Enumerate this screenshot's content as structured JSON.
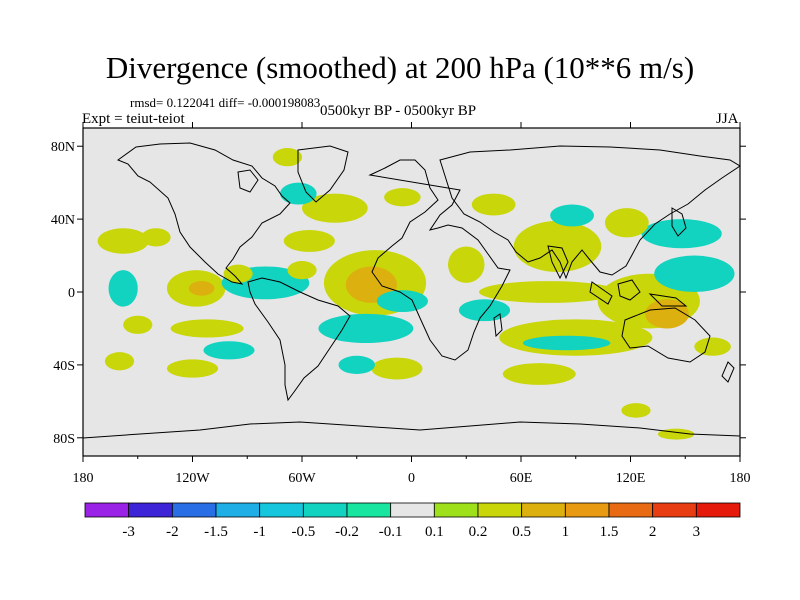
{
  "header": {
    "title": "Divergence (smoothed) at 200 hPa (10**6 m/s)",
    "stats": "rmsd= 0.122041 diff= -0.000198083",
    "expt": "Expt = teiut-teiot",
    "period": "0500kyr BP - 0500kyr BP",
    "season": "JJA"
  },
  "chart_data": {
    "type": "heatmap",
    "title": "Divergence (smoothed) at 200 hPa (10**6 m/s)",
    "projection": "cylindrical-equidistant",
    "xlim": [
      -180,
      180
    ],
    "ylim": [
      -90,
      90
    ],
    "x_ticks": [
      {
        "value": -180,
        "label": "180"
      },
      {
        "value": -120,
        "label": "120W"
      },
      {
        "value": -60,
        "label": "60W"
      },
      {
        "value": 0,
        "label": "0"
      },
      {
        "value": 60,
        "label": "60E"
      },
      {
        "value": 120,
        "label": "120E"
      },
      {
        "value": 180,
        "label": "180"
      }
    ],
    "y_ticks": [
      {
        "value": 80,
        "label": "80N"
      },
      {
        "value": 40,
        "label": "40N"
      },
      {
        "value": 0,
        "label": "0"
      },
      {
        "value": -40,
        "label": "40S"
      },
      {
        "value": -80,
        "label": "80S"
      }
    ],
    "background_color": "#e6e6e6",
    "colorbar": {
      "levels": [
        {
          "label": "-3",
          "value": -3
        },
        {
          "label": "-2",
          "value": -2
        },
        {
          "label": "-1.5",
          "value": -1.5
        },
        {
          "label": "-1",
          "value": -1
        },
        {
          "label": "-0.5",
          "value": -0.5
        },
        {
          "label": "-0.2",
          "value": -0.2
        },
        {
          "label": "-0.1",
          "value": -0.1
        },
        {
          "label": "0.1",
          "value": 0.1
        },
        {
          "label": "0.2",
          "value": 0.2
        },
        {
          "label": "0.5",
          "value": 0.5
        },
        {
          "label": "1",
          "value": 1
        },
        {
          "label": "1.5",
          "value": 1.5
        },
        {
          "label": "2",
          "value": 2
        },
        {
          "label": "3",
          "value": 3
        }
      ],
      "colors": [
        "#9a22e6",
        "#3d24d6",
        "#2a6ee6",
        "#1faee6",
        "#16c6dc",
        "#12d2c0",
        "#18e6a0",
        "#e6e6e6",
        "#9ee01a",
        "#c8d60a",
        "#dcb00e",
        "#e89a12",
        "#e86a12",
        "#e83c12",
        "#e61a0a"
      ]
    },
    "regions": [
      {
        "level": "0.2",
        "lon": -158,
        "lat": 28,
        "rlon": 14,
        "rlat": 7
      },
      {
        "level": "0.2",
        "lon": -140,
        "lat": 30,
        "rlon": 8,
        "rlat": 5
      },
      {
        "level": "-0.2",
        "lon": -158,
        "lat": 2,
        "rlon": 8,
        "rlat": 10
      },
      {
        "level": "0.2",
        "lon": -118,
        "lat": 2,
        "rlon": 16,
        "rlat": 10
      },
      {
        "level": "0.5",
        "lon": -115,
        "lat": 2,
        "rlon": 7,
        "rlat": 4
      },
      {
        "level": "0.2",
        "lon": -112,
        "lat": -20,
        "rlon": 20,
        "rlat": 5
      },
      {
        "level": "0.2",
        "lon": -150,
        "lat": -18,
        "rlon": 8,
        "rlat": 5
      },
      {
        "level": "-0.2",
        "lon": -80,
        "lat": 5,
        "rlon": 24,
        "rlat": 9
      },
      {
        "level": "0.2",
        "lon": -95,
        "lat": 10,
        "rlon": 8,
        "rlat": 5
      },
      {
        "level": "0.2",
        "lon": -60,
        "lat": 12,
        "rlon": 8,
        "rlat": 5
      },
      {
        "level": "0.2",
        "lon": -56,
        "lat": 28,
        "rlon": 14,
        "rlat": 6
      },
      {
        "level": "0.2",
        "lon": -42,
        "lat": 46,
        "rlon": 18,
        "rlat": 8
      },
      {
        "level": "0.2",
        "lon": -68,
        "lat": 74,
        "rlon": 8,
        "rlat": 5
      },
      {
        "level": "-0.2",
        "lon": -62,
        "lat": 54,
        "rlon": 10,
        "rlat": 6
      },
      {
        "level": "0.2",
        "lon": -5,
        "lat": 52,
        "rlon": 10,
        "rlat": 5
      },
      {
        "level": "-0.2",
        "lon": -100,
        "lat": -32,
        "rlon": 14,
        "rlat": 5
      },
      {
        "level": "0.2",
        "lon": -120,
        "lat": -42,
        "rlon": 14,
        "rlat": 5
      },
      {
        "level": "0.2",
        "lon": -160,
        "lat": -38,
        "rlon": 8,
        "rlat": 5
      },
      {
        "level": "0.2",
        "lon": -20,
        "lat": 5,
        "rlon": 28,
        "rlat": 18
      },
      {
        "level": "0.5",
        "lon": -22,
        "lat": 4,
        "rlon": 14,
        "rlat": 10
      },
      {
        "level": "-0.2",
        "lon": -25,
        "lat": -20,
        "rlon": 26,
        "rlat": 8
      },
      {
        "level": "-0.2",
        "lon": -5,
        "lat": -5,
        "rlon": 14,
        "rlat": 6
      },
      {
        "level": "0.2",
        "lon": -8,
        "lat": -42,
        "rlon": 14,
        "rlat": 6
      },
      {
        "level": "-0.2",
        "lon": -30,
        "lat": -40,
        "rlon": 10,
        "rlat": 5
      },
      {
        "level": "0.2",
        "lon": 30,
        "lat": 15,
        "rlon": 10,
        "rlat": 10
      },
      {
        "level": "-0.2",
        "lon": 40,
        "lat": -10,
        "rlon": 14,
        "rlat": 6
      },
      {
        "level": "0.2",
        "lon": 45,
        "lat": 48,
        "rlon": 12,
        "rlat": 6
      },
      {
        "level": "0.2",
        "lon": 80,
        "lat": 25,
        "rlon": 24,
        "rlat": 14
      },
      {
        "level": "-0.2",
        "lon": 88,
        "lat": 42,
        "rlon": 12,
        "rlat": 6
      },
      {
        "level": "0.2",
        "lon": 75,
        "lat": 0,
        "rlon": 38,
        "rlat": 6
      },
      {
        "level": "0.2",
        "lon": 90,
        "lat": -25,
        "rlon": 42,
        "rlat": 10
      },
      {
        "level": "-0.2",
        "lon": 85,
        "lat": -28,
        "rlon": 24,
        "rlat": 4
      },
      {
        "level": "0.2",
        "lon": 70,
        "lat": -45,
        "rlon": 20,
        "rlat": 6
      },
      {
        "level": "0.2",
        "lon": 130,
        "lat": -5,
        "rlon": 28,
        "rlat": 15
      },
      {
        "level": "0.5",
        "lon": 140,
        "lat": -12,
        "rlon": 12,
        "rlat": 8
      },
      {
        "level": "-0.2",
        "lon": 155,
        "lat": 10,
        "rlon": 22,
        "rlat": 10
      },
      {
        "level": "-0.2",
        "lon": 148,
        "lat": 32,
        "rlon": 22,
        "rlat": 8
      },
      {
        "level": "0.2",
        "lon": 118,
        "lat": 38,
        "rlon": 12,
        "rlat": 8
      },
      {
        "level": "0.2",
        "lon": 165,
        "lat": -30,
        "rlon": 10,
        "rlat": 5
      },
      {
        "level": "0.2",
        "lon": 123,
        "lat": -65,
        "rlon": 8,
        "rlat": 4
      },
      {
        "level": "0.2",
        "lon": 145,
        "lat": -78,
        "rlon": 10,
        "rlat": 3
      }
    ]
  }
}
